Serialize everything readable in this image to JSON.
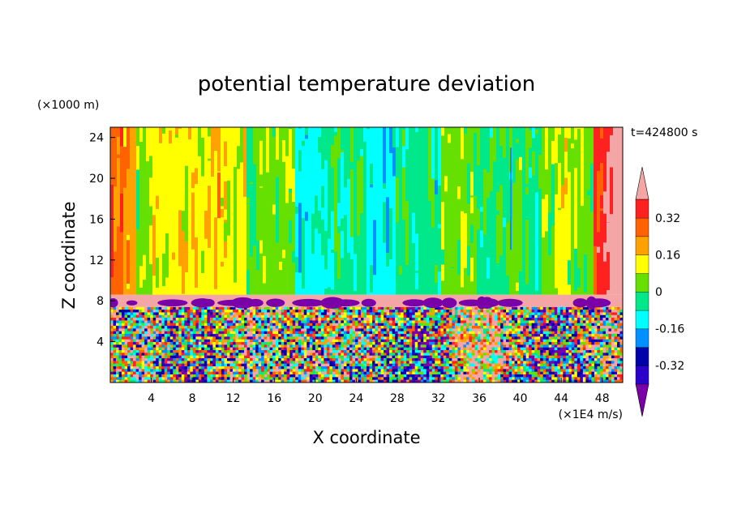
{
  "chart_data": {
    "type": "heatmap",
    "title": "potential temperature deviation",
    "xlabel": "X coordinate",
    "ylabel": "Z coordinate",
    "x_unit": "(×1E4 m/s)",
    "y_unit": "(×1000 m)",
    "time_label": "t=424800 s",
    "xlim": [
      0,
      50
    ],
    "ylim": [
      0,
      25
    ],
    "x_ticks": [
      4,
      8,
      12,
      16,
      20,
      24,
      28,
      32,
      36,
      40,
      44,
      48
    ],
    "y_ticks": [
      4,
      8,
      12,
      16,
      20,
      24
    ],
    "colorbar": {
      "levels": [
        -0.4,
        -0.32,
        -0.24,
        -0.16,
        -0.08,
        0,
        0.08,
        0.16,
        0.24,
        0.32,
        0.4
      ],
      "labels": [
        "-0.32",
        "-0.16",
        "0",
        "0.16",
        "0.32"
      ],
      "label_values": [
        -0.32,
        -0.16,
        0,
        0.16,
        0.32
      ],
      "colors": [
        "#7a00a8",
        "#2b00c8",
        "#0000a8",
        "#0090ff",
        "#00ffff",
        "#00e88a",
        "#66e000",
        "#ffff00",
        "#ffa200",
        "#ff6200",
        "#ff2020",
        "#f4a6a6"
      ],
      "extend": "both"
    },
    "stable_layer_z": [
      7.4,
      8.6
    ],
    "stable_layer_value": 0.45
  }
}
